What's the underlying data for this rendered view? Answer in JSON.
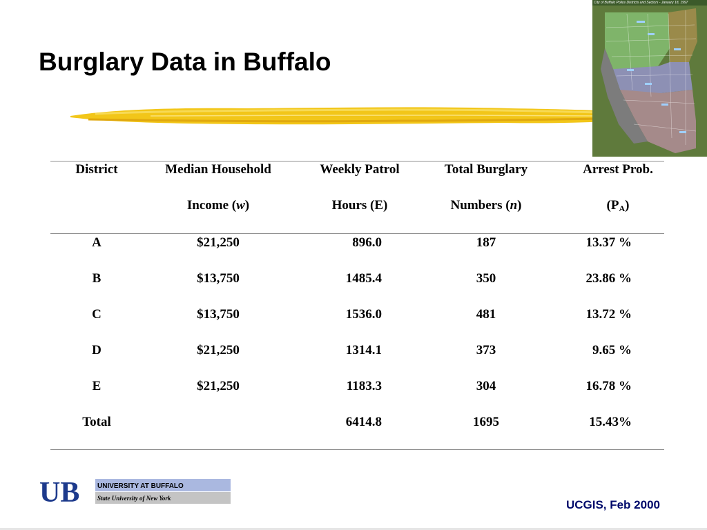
{
  "slide": {
    "title": "Burglary Data in Buffalo",
    "map_caption": "City of Buffalo Police Districts and Sectors - January 18, 1997"
  },
  "table": {
    "headers": {
      "district": "District",
      "income_line1": "Median Household",
      "income_line2": "Income (",
      "income_var": "w",
      "income_close": ")",
      "patrol_line1": "Weekly Patrol",
      "patrol_line2": "Hours (E)",
      "burglary_line1": "Total Burglary",
      "burglary_line2": "Numbers (",
      "burglary_var": "n",
      "burglary_close": ")",
      "arrest_line1": "Arrest Prob.",
      "arrest_line2": "(P",
      "arrest_sub": "A",
      "arrest_close": ")"
    },
    "rows": [
      {
        "district": "A",
        "income": "$21,250",
        "patrol": "896.0",
        "burglary": "187",
        "arrest": "13.37 %"
      },
      {
        "district": "B",
        "income": "$13,750",
        "patrol": "1485.4",
        "burglary": "350",
        "arrest": "23.86 %"
      },
      {
        "district": "C",
        "income": "$13,750",
        "patrol": "1536.0",
        "burglary": "481",
        "arrest": "13.72 %"
      },
      {
        "district": "D",
        "income": "$21,250",
        "patrol": "1314.1",
        "burglary": "373",
        "arrest": "9.65 %"
      },
      {
        "district": "E",
        "income": "$21,250",
        "patrol": "1183.3",
        "burglary": "304",
        "arrest": "16.78 %"
      }
    ],
    "total": {
      "label": "Total",
      "patrol": "6414.8",
      "burglary": "1695",
      "arrest": "15.43%"
    }
  },
  "logo": {
    "monogram": "UB",
    "line1": "UNIVERSITY AT BUFFALO",
    "line2": "State University of New York"
  },
  "footer": {
    "text": "UCGIS, Feb 2000"
  },
  "colors": {
    "title": "#000000",
    "brush": "#f2c619",
    "footer": "#000a6b",
    "logo_blue": "#1d3a8c",
    "rule": "#8c8c8c"
  }
}
